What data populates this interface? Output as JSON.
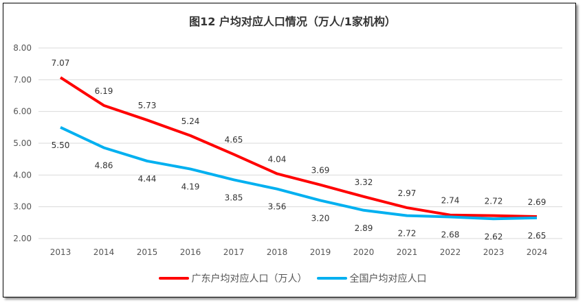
{
  "chart_data": {
    "type": "line",
    "title": "图12 户均对应人口情况（万人/1家机构）",
    "categories": [
      "2013",
      "2014",
      "2015",
      "2016",
      "2017",
      "2018",
      "2019",
      "2020",
      "2021",
      "2022",
      "2023",
      "2024"
    ],
    "ylim": [
      2,
      8
    ],
    "yticks": [
      "2.00",
      "3.00",
      "4.00",
      "5.00",
      "6.00",
      "7.00",
      "8.00"
    ],
    "grid": true,
    "legend_position": "bottom",
    "series": [
      {
        "name": "广东户均对应人口（万人）",
        "color": "#ff0000",
        "values": [
          7.07,
          6.19,
          5.73,
          5.24,
          4.65,
          4.04,
          3.69,
          3.32,
          2.97,
          2.74,
          2.72,
          2.69
        ]
      },
      {
        "name": "全国户均对应人口",
        "color": "#00b0f0",
        "values": [
          5.5,
          4.86,
          4.44,
          4.19,
          3.85,
          3.56,
          3.2,
          2.89,
          2.72,
          2.68,
          2.62,
          2.65
        ]
      }
    ]
  }
}
